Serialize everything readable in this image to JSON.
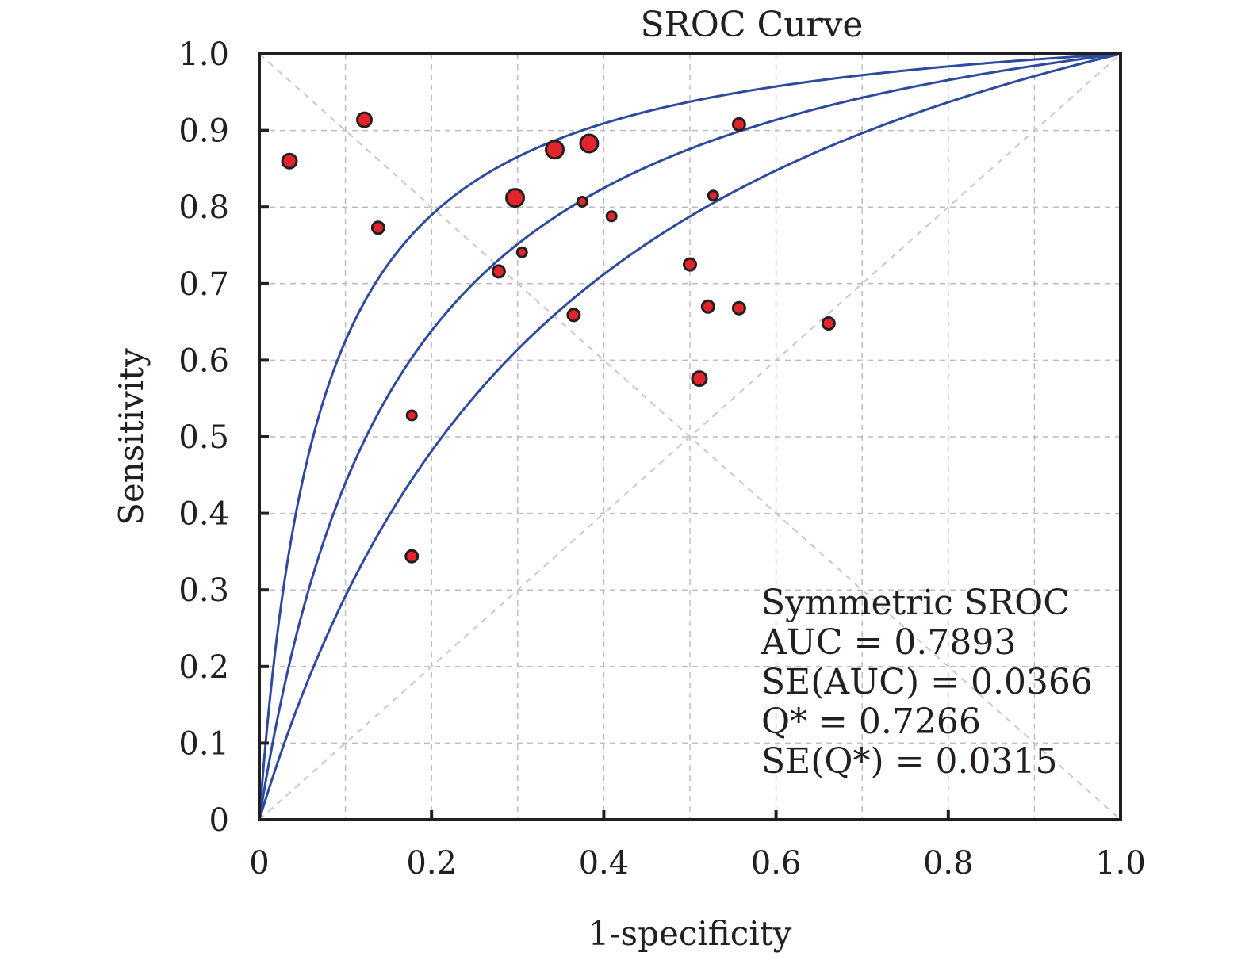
{
  "chart_data": {
    "type": "scatter",
    "title": "SROC Curve",
    "xlabel": "1-specificity",
    "ylabel": "Sensitivity",
    "xlim": [
      0,
      1
    ],
    "ylim": [
      0,
      1
    ],
    "grid": true,
    "x_ticks": [
      "0",
      "0.2",
      "0.4",
      "0.6",
      "0.8",
      "1.0"
    ],
    "y_ticks": [
      "0",
      "0.1",
      "0.2",
      "0.3",
      "0.4",
      "0.5",
      "0.6",
      "0.7",
      "0.8",
      "0.9",
      "1.0"
    ],
    "points": [
      {
        "x": 0.035,
        "y": 0.86,
        "weight": 2
      },
      {
        "x": 0.122,
        "y": 0.914,
        "weight": 2
      },
      {
        "x": 0.138,
        "y": 0.773,
        "weight": 1
      },
      {
        "x": 0.177,
        "y": 0.528,
        "weight": 0
      },
      {
        "x": 0.177,
        "y": 0.344,
        "weight": 1
      },
      {
        "x": 0.278,
        "y": 0.716,
        "weight": 1
      },
      {
        "x": 0.297,
        "y": 0.812,
        "weight": 3
      },
      {
        "x": 0.305,
        "y": 0.741,
        "weight": 0
      },
      {
        "x": 0.343,
        "y": 0.875,
        "weight": 3
      },
      {
        "x": 0.365,
        "y": 0.659,
        "weight": 1
      },
      {
        "x": 0.375,
        "y": 0.807,
        "weight": 0
      },
      {
        "x": 0.383,
        "y": 0.883,
        "weight": 3
      },
      {
        "x": 0.409,
        "y": 0.788,
        "weight": 0
      },
      {
        "x": 0.5,
        "y": 0.725,
        "weight": 1
      },
      {
        "x": 0.511,
        "y": 0.576,
        "weight": 2
      },
      {
        "x": 0.521,
        "y": 0.67,
        "weight": 1
      },
      {
        "x": 0.527,
        "y": 0.815,
        "weight": 0
      },
      {
        "x": 0.557,
        "y": 0.908,
        "weight": 1
      },
      {
        "x": 0.557,
        "y": 0.668,
        "weight": 1
      },
      {
        "x": 0.661,
        "y": 0.648,
        "weight": 1
      }
    ],
    "curves": {
      "model": "symmetric SROC",
      "sroc": {
        "Q": 0.7266
      },
      "lower_bound": {
        "Q": 0.6583
      },
      "upper_bound": {
        "Q": 0.7949
      }
    },
    "annotation": [
      "Symmetric SROC",
      "AUC = 0.7893",
      "SE(AUC) = 0.0366",
      "Q* = 0.7266",
      "SE(Q*) = 0.0315"
    ],
    "colors": {
      "points_fill": "#e3242b",
      "points_stroke": "#231f20",
      "curve": "#2e4a9e",
      "grid": "#bdbdbd",
      "diagonal": "#c8c8c8",
      "axis": "#231f20"
    }
  }
}
